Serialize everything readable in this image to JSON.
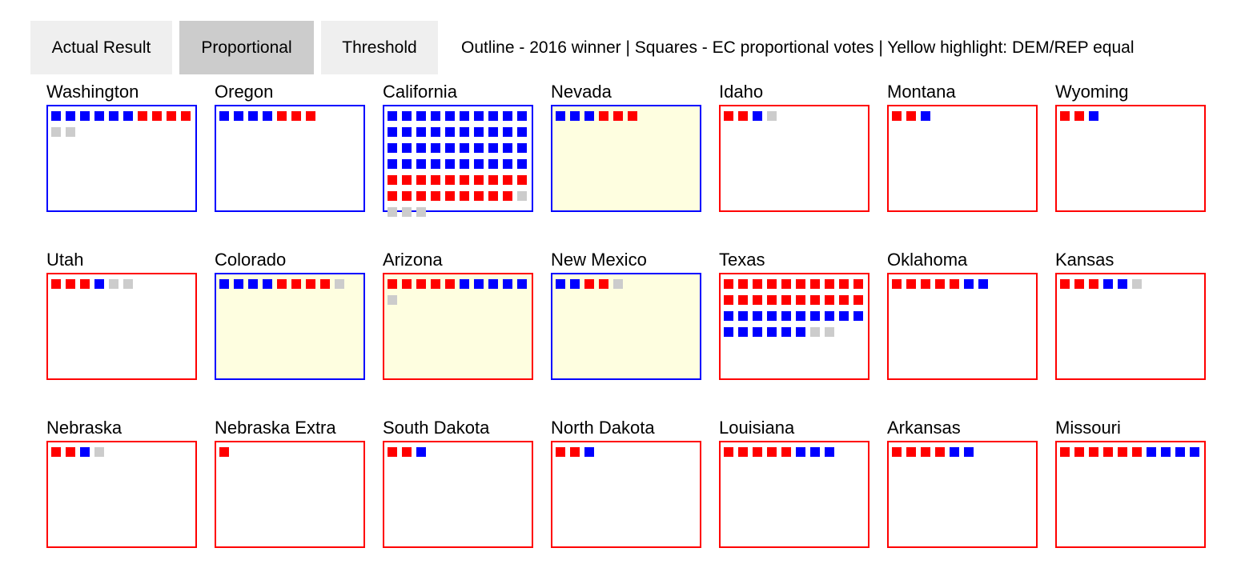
{
  "toolbar": {
    "tabs": [
      {
        "label": "Actual Result",
        "active": false
      },
      {
        "label": "Proportional",
        "active": true
      },
      {
        "label": "Threshold",
        "active": false
      }
    ],
    "legend": "Outline - 2016 winner | Squares - EC proportional votes | Yellow highlight: DEM/REP equal"
  },
  "colors": {
    "dem": "#0000ff",
    "rep": "#ff0000",
    "other": "#cccccc",
    "equal_highlight": "#fefee0"
  },
  "states": [
    {
      "name": "Washington",
      "winner": "dem",
      "equal": false,
      "squares": "DDDDDDRRRRGG"
    },
    {
      "name": "Oregon",
      "winner": "dem",
      "equal": false,
      "squares": "DDDDRRR"
    },
    {
      "name": "California",
      "winner": "dem",
      "equal": false,
      "squares": "DDDDDDDDDDDDDDDDDDDDDDDDDDDDDDDDDDDDDDDDRRRRRRRRRRRRRRRRRRRGGGG"
    },
    {
      "name": "Nevada",
      "winner": "dem",
      "equal": true,
      "squares": "DDDRRR"
    },
    {
      "name": "Idaho",
      "winner": "rep",
      "equal": false,
      "squares": "RRDG"
    },
    {
      "name": "Montana",
      "winner": "rep",
      "equal": false,
      "squares": "RRD"
    },
    {
      "name": "Wyoming",
      "winner": "rep",
      "equal": false,
      "squares": "RRD"
    },
    {
      "name": "Utah",
      "winner": "rep",
      "equal": false,
      "squares": "RRRDGG"
    },
    {
      "name": "Colorado",
      "winner": "dem",
      "equal": true,
      "squares": "DDDDRRRRG"
    },
    {
      "name": "Arizona",
      "winner": "rep",
      "equal": true,
      "squares": "RRRRRDDDDDG"
    },
    {
      "name": "New Mexico",
      "winner": "dem",
      "equal": true,
      "squares": "DDRRG"
    },
    {
      "name": "Texas",
      "winner": "rep",
      "equal": false,
      "squares": "RRRRRRRRRRRRRRRRRRRRDDDDDDDDDDDDDDDDGG"
    },
    {
      "name": "Oklahoma",
      "winner": "rep",
      "equal": false,
      "squares": "RRRRRDD"
    },
    {
      "name": "Kansas",
      "winner": "rep",
      "equal": false,
      "squares": "RRRDDG"
    },
    {
      "name": "Nebraska",
      "winner": "rep",
      "equal": false,
      "squares": "RRDG"
    },
    {
      "name": "Nebraska Extra",
      "winner": "rep",
      "equal": false,
      "squares": "R"
    },
    {
      "name": "South Dakota",
      "winner": "rep",
      "equal": false,
      "squares": "RRD"
    },
    {
      "name": "North Dakota",
      "winner": "rep",
      "equal": false,
      "squares": "RRD"
    },
    {
      "name": "Louisiana",
      "winner": "rep",
      "equal": false,
      "squares": "RRRRRDDD"
    },
    {
      "name": "Arkansas",
      "winner": "rep",
      "equal": false,
      "squares": "RRRRDD"
    },
    {
      "name": "Missouri",
      "winner": "rep",
      "equal": false,
      "squares": "RRRRRRDDDD"
    }
  ]
}
